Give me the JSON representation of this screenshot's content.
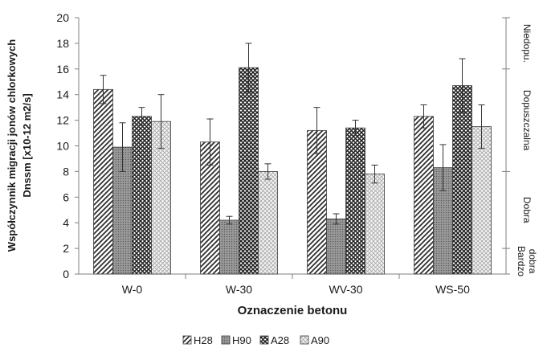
{
  "chart_data": {
    "type": "bar",
    "categories": [
      "W-0",
      "W-30",
      "WV-30",
      "WS-50"
    ],
    "series": [
      {
        "name": "H28",
        "values": [
          14.4,
          10.3,
          11.2,
          12.3
        ],
        "errors": [
          1.1,
          1.8,
          1.8,
          0.9
        ]
      },
      {
        "name": "H90",
        "values": [
          9.9,
          4.2,
          4.3,
          8.3
        ],
        "errors": [
          1.9,
          0.3,
          0.4,
          1.8
        ]
      },
      {
        "name": "A28",
        "values": [
          12.3,
          16.1,
          11.4,
          14.7
        ],
        "errors": [
          0.7,
          1.9,
          0.6,
          2.1
        ]
      },
      {
        "name": "A90",
        "values": [
          11.9,
          8.0,
          7.8,
          11.5
        ],
        "errors": [
          2.1,
          0.6,
          0.7,
          1.7
        ]
      }
    ],
    "xlabel": "Oznaczenie betonu",
    "ylabel_lines": [
      "Współczynnik migracji jonów chlorkowych",
      "Dnssm [x10-12 m2/s]"
    ],
    "ylim": [
      0,
      20
    ],
    "yticks": [
      0,
      2,
      4,
      6,
      8,
      10,
      12,
      14,
      16,
      18,
      20
    ],
    "secondary_axis": {
      "boundaries": [
        2,
        8,
        16
      ],
      "bands": [
        {
          "label_lines": [
            "Bardzo",
            "dobra"
          ],
          "from": 0,
          "to": 2
        },
        {
          "label_lines": [
            "Dobra"
          ],
          "from": 2,
          "to": 8
        },
        {
          "label_lines": [
            "Dopuszczalna"
          ],
          "from": 8,
          "to": 16
        },
        {
          "label_lines": [
            "Niedopu."
          ],
          "from": 16,
          "to": 20
        }
      ]
    },
    "legend_position": "bottom",
    "grid": false
  }
}
